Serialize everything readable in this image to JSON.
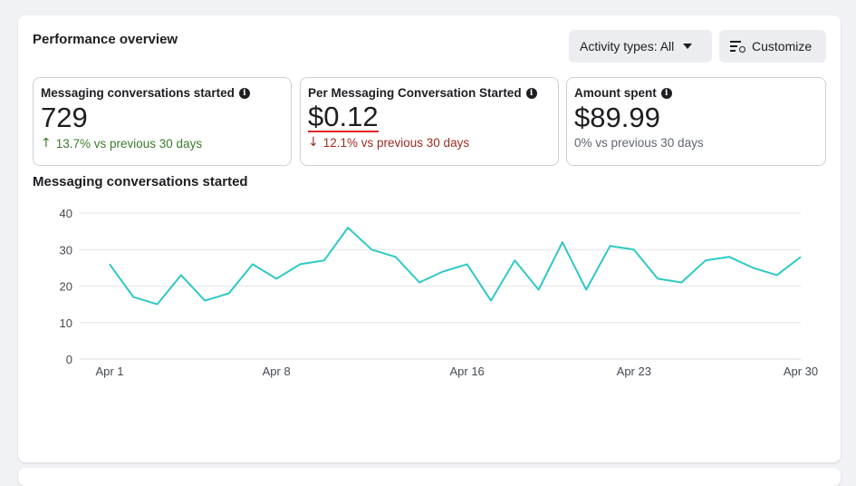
{
  "header": {
    "title": "Performance overview",
    "activity_label": "Activity types: All",
    "customize_label": "Customize"
  },
  "metrics": [
    {
      "label": "Messaging conversations started",
      "value": "729",
      "delta": "13.7% vs previous 30 days",
      "trend": "up"
    },
    {
      "label": "Per Messaging Conversation Started",
      "value": "$0.12",
      "delta": "12.1% vs previous 30 days",
      "trend": "down"
    },
    {
      "label": "Amount spent",
      "value": "$89.99",
      "delta": "0% vs previous 30 days",
      "trend": "flat"
    }
  ],
  "icons": {
    "info": "info-icon",
    "up": "arrow-up-icon",
    "down": "arrow-down-icon",
    "caret": "caret-down-icon",
    "customize": "customize-icon"
  },
  "colors": {
    "line": "#2ec9c4",
    "up": "#3c7a2d",
    "down": "#9c2b23",
    "highlight": "#e02424"
  },
  "chart_data": {
    "type": "line",
    "title": "Messaging conversations started",
    "x": [
      1,
      2,
      3,
      4,
      5,
      6,
      7,
      8,
      9,
      10,
      11,
      12,
      13,
      14,
      15,
      16,
      17,
      18,
      19,
      20,
      21,
      22,
      23,
      24,
      25,
      26,
      27,
      28,
      29,
      30
    ],
    "x_tick_days": [
      1,
      8,
      16,
      23,
      30
    ],
    "x_tick_labels": [
      "Apr 1",
      "Apr 8",
      "Apr 16",
      "Apr 23",
      "Apr 30"
    ],
    "series": [
      {
        "values": [
          26,
          17,
          15,
          23,
          16,
          18,
          26,
          22,
          26,
          27,
          36,
          30,
          28,
          21,
          24,
          26,
          16,
          27,
          19,
          32,
          19,
          31,
          30,
          22,
          21,
          27,
          28,
          25,
          23,
          28
        ]
      }
    ],
    "ylim": [
      0,
      40
    ],
    "y_ticks": [
      "0",
      "10",
      "20",
      "30",
      "40"
    ],
    "grid": true,
    "xlabel": "",
    "ylabel": ""
  }
}
